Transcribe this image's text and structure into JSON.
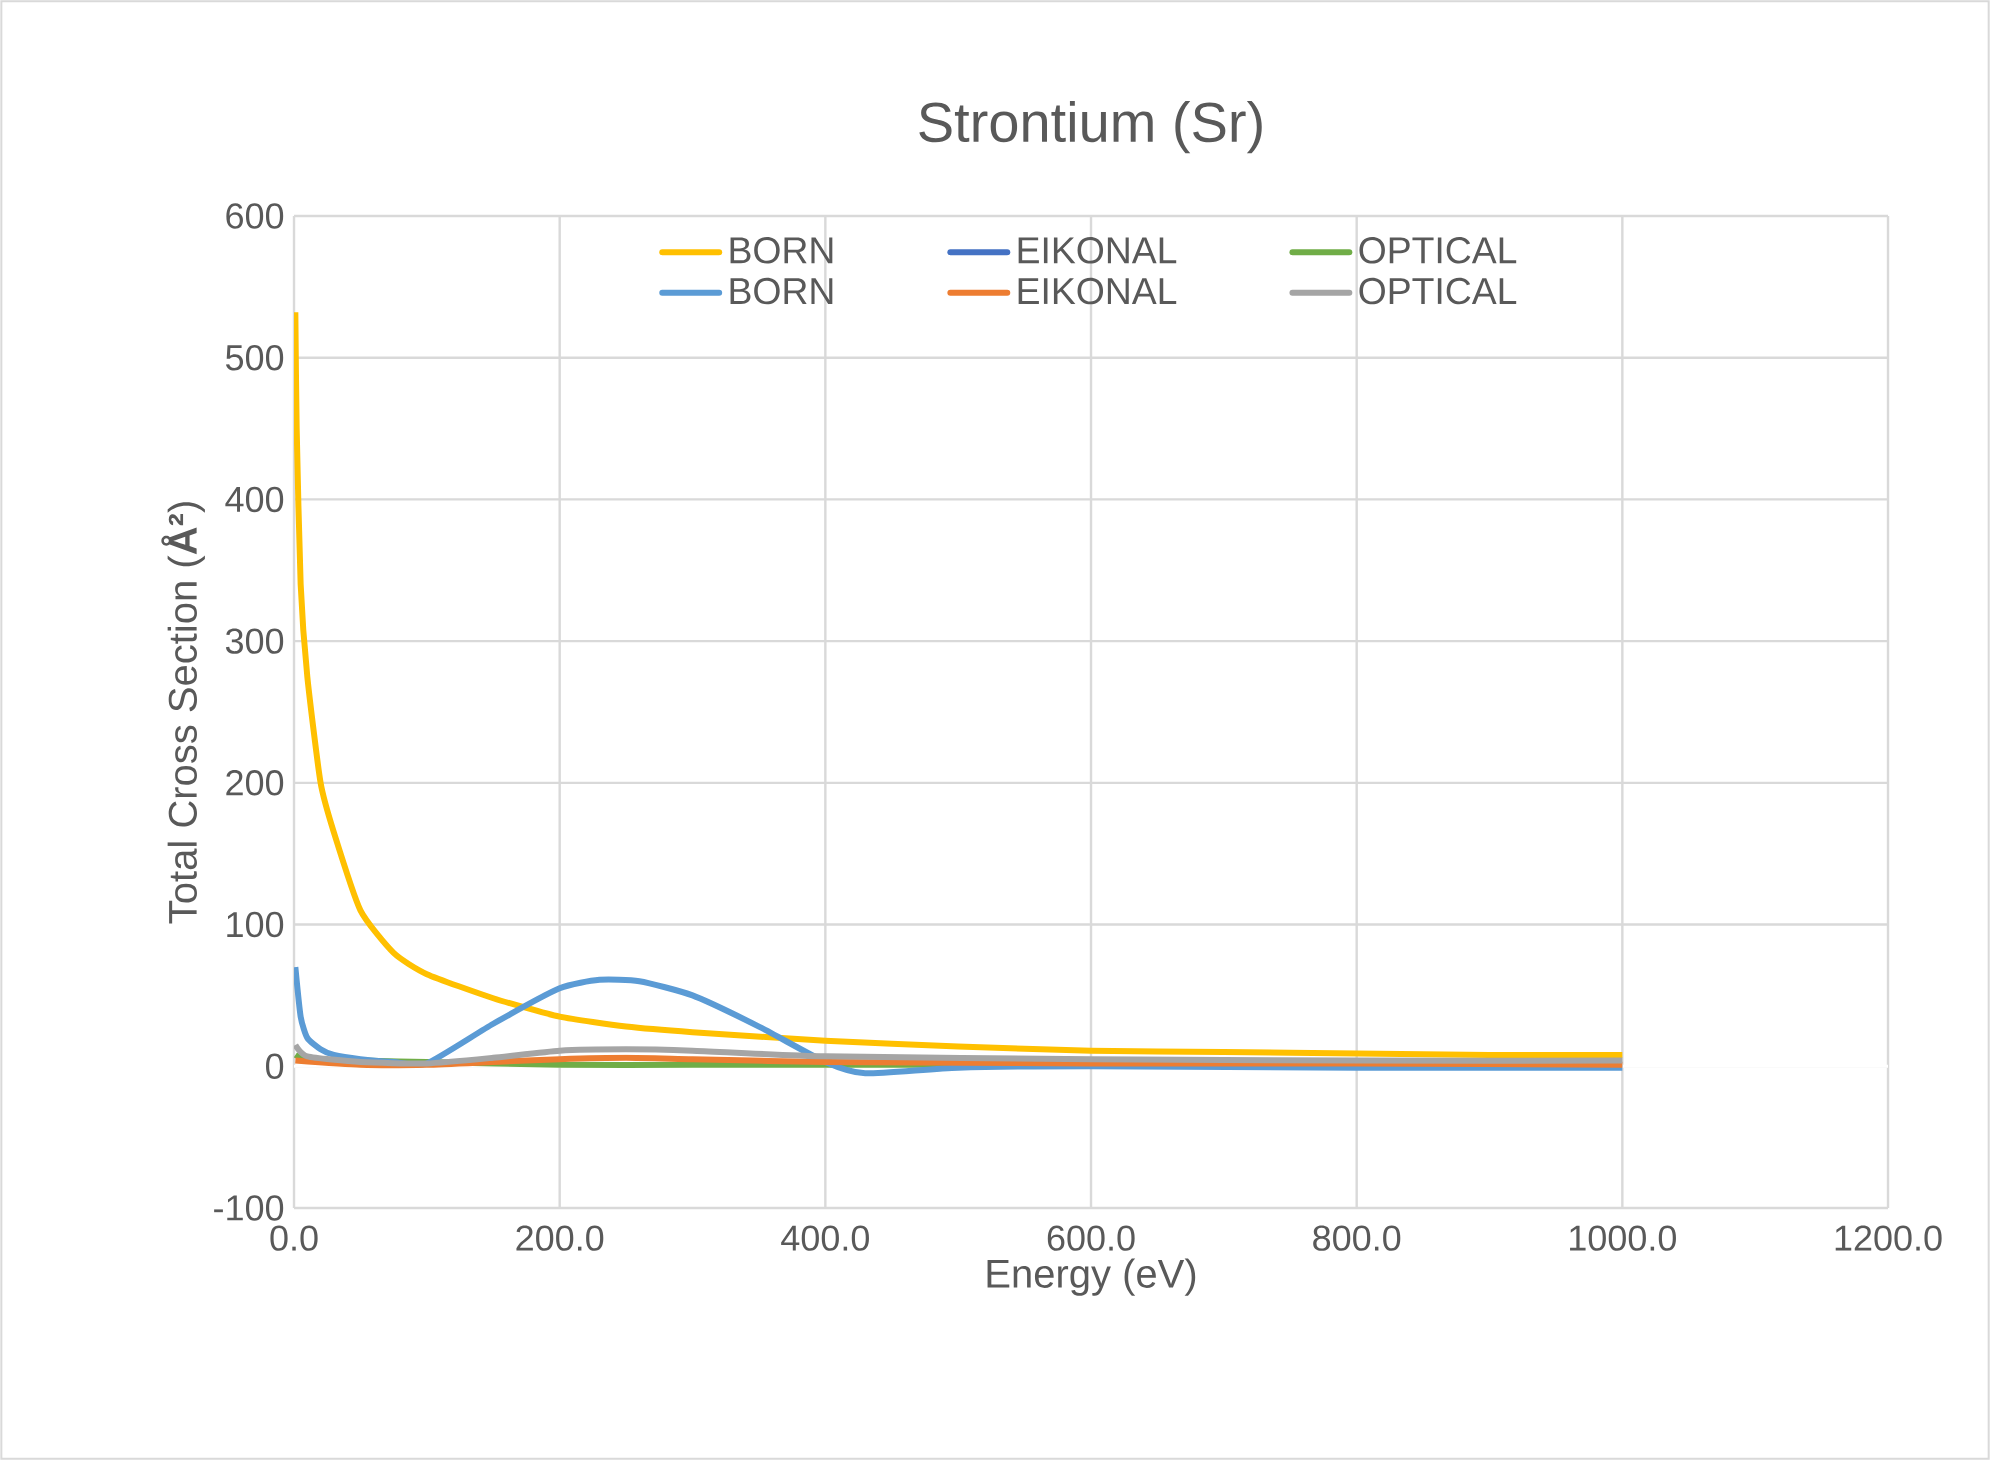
{
  "chart_data": {
    "type": "line",
    "title": "Strontium (Sr)",
    "xlabel": "Energy (eV)",
    "ylabel": "Total Cross Section (**Å²**)",
    "xlim": [
      0,
      1200
    ],
    "ylim": [
      -100,
      600
    ],
    "xticks": [
      {
        "value": 0,
        "label": "0.0"
      },
      {
        "value": 200,
        "label": "200.0"
      },
      {
        "value": 400,
        "label": "400.0"
      },
      {
        "value": 600,
        "label": "600.0"
      },
      {
        "value": 800,
        "label": "800.0"
      },
      {
        "value": 1000,
        "label": "1000.0"
      },
      {
        "value": 1200,
        "label": "1200.0"
      }
    ],
    "yticks": [
      -100,
      0,
      100,
      200,
      300,
      400,
      500,
      600
    ],
    "grid": true,
    "legend": "top",
    "marker": "none",
    "line_style": "solid",
    "series": [
      {
        "name": "BORN",
        "color": "#ffc000",
        "x": [
          1,
          2,
          5,
          10,
          20,
          30,
          50,
          75,
          100,
          150,
          200,
          250,
          300,
          400,
          500,
          600,
          700,
          800,
          900,
          1000
        ],
        "values": [
          532,
          450,
          340,
          275,
          200,
          165,
          110,
          80,
          65,
          48,
          35,
          28,
          24,
          18,
          14,
          11,
          10,
          9,
          8,
          8
        ]
      },
      {
        "name": "EIKONAL",
        "color": "#4472c4"
      },
      {
        "name": "OPTICAL",
        "color": "#70ad47",
        "x": [
          1,
          10,
          50,
          100,
          200,
          300,
          400,
          600
        ],
        "values": [
          8,
          5,
          4,
          3,
          1,
          1,
          1,
          1
        ]
      },
      {
        "name": "BORN",
        "color": "#5b9bd5",
        "x": [
          1,
          5,
          10,
          20,
          30,
          50,
          75,
          100,
          150,
          200,
          230,
          260,
          300,
          350,
          400,
          430,
          500,
          600,
          800,
          1000
        ],
        "values": [
          70,
          35,
          20,
          12,
          8,
          5,
          3,
          2,
          30,
          55,
          61,
          60,
          50,
          28,
          3,
          -5,
          -1,
          0,
          -1,
          -1
        ]
      },
      {
        "name": "EIKONAL",
        "color": "#ed7d31",
        "x": [
          1,
          50,
          100,
          150,
          200,
          250,
          300,
          400,
          600,
          800,
          1000
        ],
        "values": [
          4,
          1,
          1,
          3,
          5,
          6,
          5,
          3,
          2,
          2,
          1
        ]
      },
      {
        "name": "OPTICAL",
        "color": "#a5a5a5",
        "x": [
          1,
          10,
          50,
          100,
          150,
          200,
          250,
          300,
          400,
          600,
          800,
          1000
        ],
        "values": [
          15,
          7,
          3,
          2,
          6,
          11,
          12,
          11,
          7,
          5,
          4,
          4
        ]
      }
    ]
  }
}
